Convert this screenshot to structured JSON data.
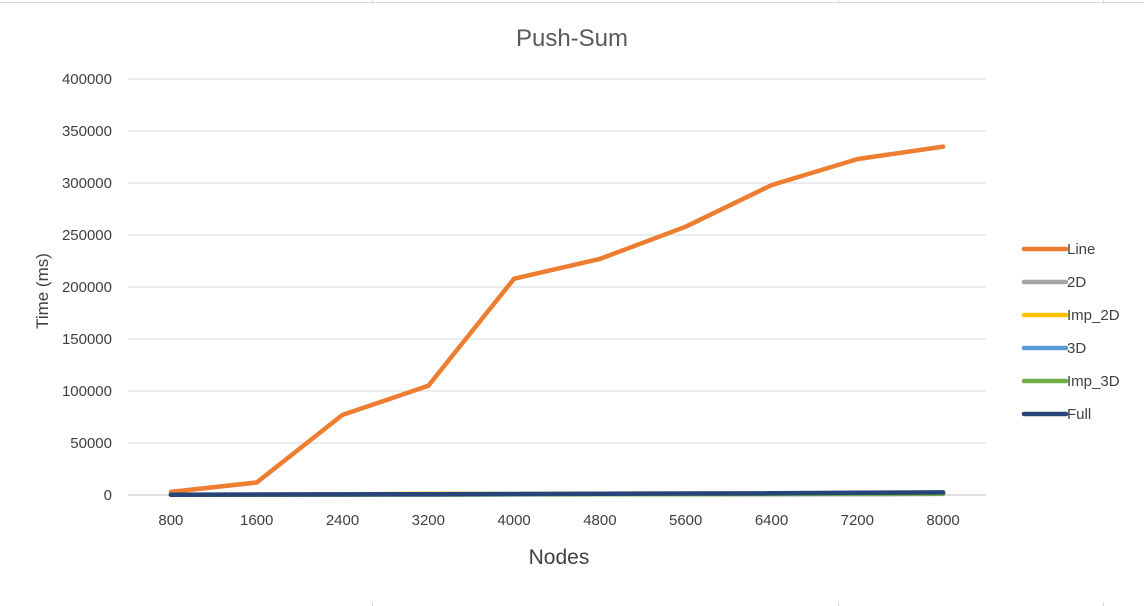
{
  "chart_data": {
    "type": "line",
    "title": "Push-Sum",
    "xlabel": "Nodes",
    "ylabel": "Time (ms)",
    "categories": [
      "800",
      "1600",
      "2400",
      "3200",
      "4000",
      "4800",
      "5600",
      "6400",
      "7200",
      "8000"
    ],
    "ylim": [
      0,
      400000
    ],
    "yticks": [
      "0",
      "50000",
      "100000",
      "150000",
      "200000",
      "250000",
      "300000",
      "350000",
      "400000"
    ],
    "grid": true,
    "legend_position": "right",
    "series": [
      {
        "name": "Line",
        "color": "#ED7D31",
        "values": [
          3000,
          12000,
          77000,
          105000,
          208000,
          227000,
          258000,
          298000,
          323000,
          335000
        ]
      },
      {
        "name": "2D",
        "color": "#A5A5A5",
        "values": [
          200,
          300,
          400,
          500,
          600,
          700,
          800,
          900,
          1000,
          1100
        ]
      },
      {
        "name": "Imp_2D",
        "color": "#FFC000",
        "values": [
          200,
          300,
          500,
          1200,
          900,
          1000,
          1000,
          1100,
          1200,
          1300
        ]
      },
      {
        "name": "3D",
        "color": "#5B9BD5",
        "values": [
          200,
          300,
          400,
          500,
          700,
          800,
          900,
          1000,
          1100,
          1200
        ]
      },
      {
        "name": "Imp_3D",
        "color": "#70AD47",
        "values": [
          200,
          300,
          400,
          500,
          700,
          800,
          900,
          1000,
          1100,
          1200
        ]
      },
      {
        "name": "Full",
        "color": "#264478",
        "values": [
          300,
          500,
          600,
          800,
          1000,
          1200,
          1400,
          1600,
          2200,
          2500
        ]
      }
    ]
  }
}
